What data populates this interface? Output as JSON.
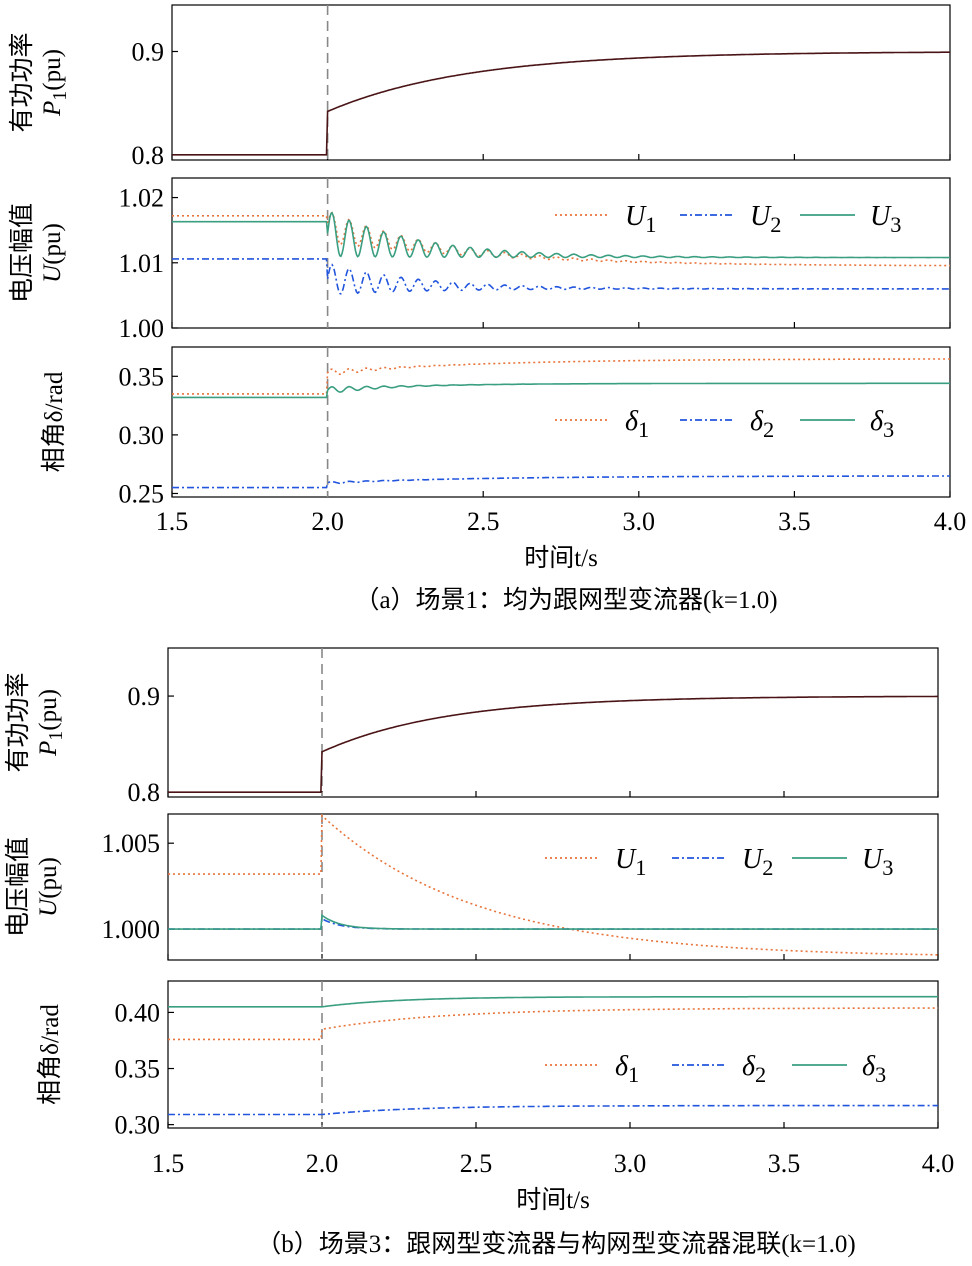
{
  "chart_data": [
    {
      "type": "line",
      "id": "a",
      "caption": "（a）场景1：均为跟网型变流器(k=1.0)",
      "xlabel": "时间t/s",
      "xlim": [
        1.5,
        4.0
      ],
      "xticks": [
        "1.5",
        "2.0",
        "2.5",
        "3.0",
        "3.5",
        "4.0"
      ],
      "event_time": 2.0,
      "panels": [
        {
          "id": "P",
          "ylabel_cn": "有功功率",
          "ylabel_sym": "P1(pu)",
          "ylim": [
            0.795,
            0.945
          ],
          "yticks": [
            0.8,
            0.9
          ],
          "ytick_labels": [
            "0.8",
            "0.9"
          ],
          "legend": [],
          "series": [
            {
              "name": "P1",
              "color": "#4a1416",
              "style": "solid",
              "pre": 0.8,
              "step": 0.842,
              "final": 0.9,
              "tau": 0.45,
              "osc_amp": 0,
              "osc_freq": 0,
              "osc_tau": 0
            }
          ]
        },
        {
          "id": "U",
          "ylabel_cn": "电压幅值",
          "ylabel_sym": "U(pu)",
          "ylim": [
            1.0,
            1.023
          ],
          "yticks": [
            1.0,
            1.01,
            1.02
          ],
          "ytick_labels": [
            "1.00",
            "1.01",
            "1.02"
          ],
          "legend": [
            "U1",
            "U2",
            "U3"
          ],
          "series": [
            {
              "name": "U1",
              "color": "#e8743b",
              "style": "dot",
              "pre": 1.0172,
              "step": 1.0155,
              "final": 1.0095,
              "tau": 0.45,
              "osc_amp": 0.0025,
              "osc_freq": 18,
              "osc_tau": 0.3
            },
            {
              "name": "U2",
              "color": "#2255dd",
              "style": "dashdot",
              "pre": 1.0106,
              "step": 1.0075,
              "final": 1.006,
              "tau": 0.3,
              "osc_amp": 0.0024,
              "osc_freq": 18,
              "osc_tau": 0.3
            },
            {
              "name": "U3",
              "color": "#3a9e80",
              "style": "solid",
              "pre": 1.0163,
              "step": 1.0145,
              "final": 1.0108,
              "tau": 0.3,
              "osc_amp": 0.0035,
              "osc_freq": 18,
              "osc_tau": 0.3
            }
          ]
        },
        {
          "id": "D",
          "ylabel_cn": "相角",
          "ylabel_sym": "δ/rad",
          "ylim": [
            0.247,
            0.375
          ],
          "yticks": [
            0.25,
            0.3,
            0.35
          ],
          "ytick_labels": [
            "0.25",
            "0.30",
            "0.35"
          ],
          "legend": [
            "δ1",
            "δ2",
            "δ3"
          ],
          "series": [
            {
              "name": "δ1",
              "color": "#e8743b",
              "style": "dot",
              "pre": 0.335,
              "step": 0.353,
              "final": 0.365,
              "tau": 0.5,
              "osc_amp": 0.003,
              "osc_freq": 18,
              "osc_tau": 0.15
            },
            {
              "name": "δ2",
              "color": "#2255dd",
              "style": "dashdot",
              "pre": 0.255,
              "step": 0.259,
              "final": 0.265,
              "tau": 0.5,
              "osc_amp": 0.001,
              "osc_freq": 18,
              "osc_tau": 0.15
            },
            {
              "name": "δ3",
              "color": "#3a9e80",
              "style": "solid",
              "pre": 0.332,
              "step": 0.338,
              "final": 0.344,
              "tau": 0.3,
              "osc_amp": 0.003,
              "osc_freq": 18,
              "osc_tau": 0.15
            }
          ]
        }
      ]
    },
    {
      "type": "line",
      "id": "b",
      "caption": "（b）场景3：跟网型变流器与构网型变流器混联(k=1.0)",
      "xlabel": "时间t/s",
      "xlim": [
        1.5,
        4.0
      ],
      "xticks": [
        "1.5",
        "2.0",
        "2.5",
        "3.0",
        "3.5",
        "4.0"
      ],
      "event_time": 2.0,
      "panels": [
        {
          "id": "P",
          "ylabel_cn": "有功功率",
          "ylabel_sym": "P1(pu)",
          "ylim": [
            0.795,
            0.95
          ],
          "yticks": [
            0.8,
            0.9
          ],
          "ytick_labels": [
            "0.8",
            "0.9"
          ],
          "legend": [],
          "series": [
            {
              "name": "P1",
              "color": "#4a1416",
              "style": "solid",
              "pre": 0.8,
              "step": 0.842,
              "final": 0.9,
              "tau": 0.4,
              "osc_amp": 0,
              "osc_freq": 0,
              "osc_tau": 0
            }
          ]
        },
        {
          "id": "U",
          "ylabel_cn": "电压幅值",
          "ylabel_sym": "U(pu)",
          "ylim": [
            0.9982,
            1.0067
          ],
          "yticks": [
            1.0,
            1.005
          ],
          "ytick_labels": [
            "1.000",
            "1.005"
          ],
          "legend": [
            "U1",
            "U2",
            "U3"
          ],
          "series": [
            {
              "name": "U1",
              "color": "#e8743b",
              "style": "dot",
              "pre": 1.0032,
              "step": 1.0066,
              "final": 0.99835,
              "tau": 0.5,
              "osc_amp": 0,
              "osc_freq": 0,
              "osc_tau": 0
            },
            {
              "name": "U2",
              "color": "#2255dd",
              "style": "dashdot",
              "pre": 1.0,
              "step": 1.0006,
              "final": 1.0,
              "tau": 0.06,
              "osc_amp": 0,
              "osc_freq": 0,
              "osc_tau": 0
            },
            {
              "name": "U3",
              "color": "#3a9e80",
              "style": "solid",
              "pre": 1.0,
              "step": 1.0008,
              "final": 1.0,
              "tau": 0.06,
              "osc_amp": 0,
              "osc_freq": 0,
              "osc_tau": 0
            }
          ]
        },
        {
          "id": "D",
          "ylabel_cn": "相角",
          "ylabel_sym": "δ/rad",
          "ylim": [
            0.297,
            0.428
          ],
          "yticks": [
            0.3,
            0.35,
            0.4
          ],
          "ytick_labels": [
            "0.30",
            "0.35",
            "0.40"
          ],
          "legend": [
            "δ1",
            "δ2",
            "δ3"
          ],
          "series": [
            {
              "name": "δ1",
              "color": "#e8743b",
              "style": "dot",
              "pre": 0.376,
              "step": 0.385,
              "final": 0.404,
              "tau": 0.4,
              "osc_amp": 0,
              "osc_freq": 0,
              "osc_tau": 0
            },
            {
              "name": "δ2",
              "color": "#2255dd",
              "style": "dashdot",
              "pre": 0.309,
              "step": 0.309,
              "final": 0.317,
              "tau": 0.3,
              "osc_amp": 0,
              "osc_freq": 0,
              "osc_tau": 0
            },
            {
              "name": "δ3",
              "color": "#3a9e80",
              "style": "solid",
              "pre": 0.405,
              "step": 0.405,
              "final": 0.414,
              "tau": 0.25,
              "osc_amp": 0,
              "osc_freq": 0,
              "osc_tau": 0
            }
          ]
        }
      ]
    }
  ]
}
